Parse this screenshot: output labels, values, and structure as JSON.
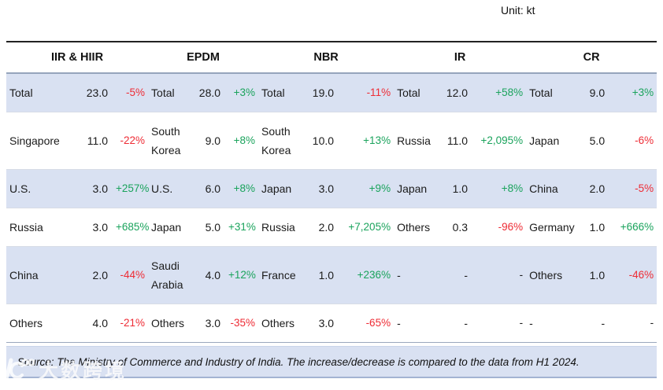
{
  "unit_label": "Unit: kt",
  "table": {
    "groups": [
      "IIR & HIIR",
      "EPDM",
      "NBR",
      "IR",
      "CR"
    ],
    "sub_columns": [
      "country",
      "volume",
      "change_pct"
    ],
    "rows": [
      {
        "cells": [
          {
            "label": "Total",
            "value": "23.0",
            "pct": "-5%"
          },
          {
            "label": "Total",
            "value": "28.0",
            "pct": "+3%"
          },
          {
            "label": "Total",
            "value": "19.0",
            "pct": "-11%"
          },
          {
            "label": "Total",
            "value": "12.0",
            "pct": "+58%"
          },
          {
            "label": "Total",
            "value": "9.0",
            "pct": "+3%"
          }
        ]
      },
      {
        "cells": [
          {
            "label": "Singapore",
            "value": "11.0",
            "pct": "-22%"
          },
          {
            "label": "South Korea",
            "value": "9.0",
            "pct": "+8%"
          },
          {
            "label": "South Korea",
            "value": "10.0",
            "pct": "+13%"
          },
          {
            "label": "Russia",
            "value": "11.0",
            "pct": "+2,095%"
          },
          {
            "label": "Japan",
            "value": "5.0",
            "pct": "-6%"
          }
        ]
      },
      {
        "cells": [
          {
            "label": "U.S.",
            "value": "3.0",
            "pct": "+257%"
          },
          {
            "label": "U.S.",
            "value": "6.0",
            "pct": "+8%"
          },
          {
            "label": "Japan",
            "value": "3.0",
            "pct": "+9%"
          },
          {
            "label": "Japan",
            "value": "1.0",
            "pct": "+8%"
          },
          {
            "label": "China",
            "value": "2.0",
            "pct": "-5%"
          }
        ]
      },
      {
        "cells": [
          {
            "label": "Russia",
            "value": "3.0",
            "pct": "+685%"
          },
          {
            "label": "Japan",
            "value": "5.0",
            "pct": "+31%"
          },
          {
            "label": "Russia",
            "value": "2.0",
            "pct": "+7,205%"
          },
          {
            "label": "Others",
            "value": "0.3",
            "pct": "-96%"
          },
          {
            "label": "Germany",
            "value": "1.0",
            "pct": "+666%"
          }
        ]
      },
      {
        "cells": [
          {
            "label": "China",
            "value": "2.0",
            "pct": "-44%"
          },
          {
            "label": "Saudi Arabia",
            "value": "4.0",
            "pct": "+12%"
          },
          {
            "label": "France",
            "value": "1.0",
            "pct": "+236%"
          },
          {
            "label": "-",
            "value": "-",
            "pct": "-"
          },
          {
            "label": "Others",
            "value": "1.0",
            "pct": "-46%"
          }
        ]
      },
      {
        "cells": [
          {
            "label": "Others",
            "value": "4.0",
            "pct": "-21%"
          },
          {
            "label": "Others",
            "value": "3.0",
            "pct": "-35%"
          },
          {
            "label": "Others",
            "value": "3.0",
            "pct": "-65%"
          },
          {
            "label": "-",
            "value": "-",
            "pct": "-"
          },
          {
            "label": "-",
            "value": "-",
            "pct": "-"
          }
        ]
      }
    ]
  },
  "footer": {
    "source": "Source: The Ministry of Commerce and Industry of India. The increase/decrease is compared to the data from H1 2024."
  },
  "watermark": {
    "logo_icon": "dashu-kuajing-logo",
    "text": "大数跨境"
  },
  "colors": {
    "positive": "#1aa35c",
    "negative": "#ee2c35",
    "band": "#d9e1f2"
  }
}
